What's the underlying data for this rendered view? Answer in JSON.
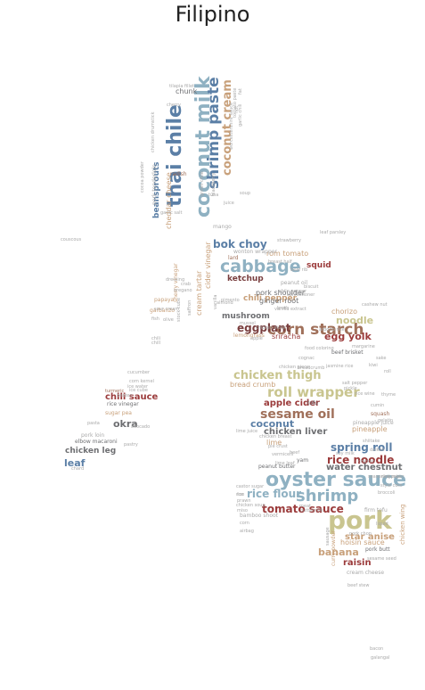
{
  "title": "Filipino",
  "palette": {
    "blue": "#5b7fa6",
    "teal": "#8fb1c2",
    "brown": "#a0705a",
    "red": "#9b3b3b",
    "olive": "#c9c58f",
    "tan": "#c8a07a",
    "gray": "#a9a9a9",
    "dark": "#6e6f72",
    "maroon": "#7a3f3f"
  },
  "words": [
    {
      "text": "pork",
      "color": "olive"
    },
    {
      "text": "oyster sauce",
      "color": "teal"
    },
    {
      "text": "coconut milk",
      "color": "teal"
    },
    {
      "text": "thai chile",
      "color": "blue"
    },
    {
      "text": "shrimp paste",
      "color": "blue"
    },
    {
      "text": "cabbage",
      "color": "teal"
    },
    {
      "text": "corn starch",
      "color": "brown"
    },
    {
      "text": "shrimp",
      "color": "teal"
    },
    {
      "text": "coconut cream",
      "color": "tan"
    },
    {
      "text": "roll wrapper",
      "color": "olive"
    },
    {
      "text": "sesame oil",
      "color": "brown"
    },
    {
      "text": "chicken thigh",
      "color": "olive"
    },
    {
      "text": "rice flour",
      "color": "teal"
    },
    {
      "text": "spring roll",
      "color": "blue"
    },
    {
      "text": "tomato sauce",
      "color": "red"
    },
    {
      "text": "banana",
      "color": "tan"
    },
    {
      "text": "bok choy",
      "color": "blue"
    },
    {
      "text": "rice noodle",
      "color": "red"
    },
    {
      "text": "egg yolk",
      "color": "red"
    },
    {
      "text": "noodle",
      "color": "olive"
    },
    {
      "text": "eggplant",
      "color": "maroon"
    },
    {
      "text": "raisin",
      "color": "red"
    },
    {
      "text": "coconut",
      "color": "blue"
    },
    {
      "text": "water chestnut",
      "color": "dark"
    },
    {
      "text": "star anise",
      "color": "tan"
    },
    {
      "text": "apple cider",
      "color": "red"
    },
    {
      "text": "chicken liver",
      "color": "dark"
    },
    {
      "text": "okra",
      "color": "dark"
    },
    {
      "text": "chili sauce",
      "color": "red"
    },
    {
      "text": "leaf",
      "color": "blue"
    },
    {
      "text": "beansprouts",
      "color": "blue"
    },
    {
      "text": "squid",
      "color": "red"
    },
    {
      "text": "ketchup",
      "color": "maroon"
    },
    {
      "text": "chicken leg",
      "color": "dark"
    },
    {
      "text": "hoisin sauce",
      "color": "tan"
    },
    {
      "text": "chorizo",
      "color": "tan"
    },
    {
      "text": "mushroom",
      "color": "dark"
    },
    {
      "text": "chili pepper",
      "color": "tan"
    },
    {
      "text": "rom tomato",
      "color": "tan"
    },
    {
      "text": "ginger root",
      "color": "dark"
    },
    {
      "text": "pork shoulder",
      "color": "dark"
    },
    {
      "text": "chunk",
      "color": "dark"
    },
    {
      "text": "cheddar cheese",
      "color": "tan"
    },
    {
      "text": "cream tartar",
      "color": "tan"
    },
    {
      "text": "cider vinegar",
      "color": "tan"
    },
    {
      "text": "sriracha",
      "color": "red"
    },
    {
      "text": "bread crumb",
      "color": "tan"
    },
    {
      "text": "pineapple",
      "color": "tan"
    },
    {
      "text": "lime",
      "color": "tan"
    },
    {
      "text": "chicken wing",
      "color": "tan"
    },
    {
      "text": "curry powder",
      "color": "tan"
    },
    {
      "text": "pork butt",
      "color": "dark"
    },
    {
      "text": "rice vinegar",
      "color": "dark"
    },
    {
      "text": "sugar pea",
      "color": "tan"
    },
    {
      "text": "elbow macaroni",
      "color": "dark"
    },
    {
      "text": "beef brisket",
      "color": "dark"
    },
    {
      "text": "tofu",
      "color": "dark"
    },
    {
      "text": "yam",
      "color": "dark"
    },
    {
      "text": "peanut butter",
      "color": "dark"
    },
    {
      "text": "mango",
      "color": "gray"
    },
    {
      "text": "garbanzo",
      "color": "tan"
    },
    {
      "text": "papaya",
      "color": "tan"
    },
    {
      "text": "lemongrass",
      "color": "tan"
    },
    {
      "text": "wonton wrapper",
      "color": "gray"
    },
    {
      "text": "lard",
      "color": "brown"
    },
    {
      "text": "radish",
      "color": "brown"
    },
    {
      "text": "pork loin",
      "color": "gray"
    },
    {
      "text": "peanut oil",
      "color": "gray"
    },
    {
      "text": "cream cheese",
      "color": "gray"
    },
    {
      "text": "sherry vinegar",
      "color": "tan"
    },
    {
      "text": "pineapple juice",
      "color": "gray"
    },
    {
      "text": "firm tofu",
      "color": "gray"
    },
    {
      "text": "bamboo shoot",
      "color": "gray"
    },
    {
      "text": "pork tenderloin",
      "color": "gray"
    },
    {
      "text": "broth",
      "color": "gray"
    },
    {
      "text": "turmeric",
      "color": "brown"
    },
    {
      "text": "shiitake",
      "color": "gray"
    },
    {
      "text": "squash",
      "color": "brown"
    },
    {
      "text": "cumin",
      "color": "gray"
    },
    {
      "text": "pickle",
      "color": "gray"
    },
    {
      "text": "salt pepper",
      "color": "gray"
    },
    {
      "text": "crab",
      "color": "gray"
    },
    {
      "text": "oregano",
      "color": "gray"
    },
    {
      "text": "chili",
      "color": "gray"
    },
    {
      "text": "cucumber",
      "color": "gray"
    },
    {
      "text": "corn",
      "color": "gray"
    },
    {
      "text": "ice",
      "color": "gray"
    },
    {
      "text": "bacon",
      "color": "gray"
    },
    {
      "text": "galangal",
      "color": "gray"
    },
    {
      "text": "leaf parsley",
      "color": "gray"
    },
    {
      "text": "strawberry",
      "color": "gray"
    },
    {
      "text": "tilapia fillet",
      "color": "gray"
    },
    {
      "text": "cashew nut",
      "color": "gray"
    },
    {
      "text": "beef stew",
      "color": "gray"
    },
    {
      "text": "sesame seed",
      "color": "gray"
    },
    {
      "text": "daikon",
      "color": "gray"
    },
    {
      "text": "broccoli",
      "color": "gray"
    },
    {
      "text": "couscous",
      "color": "gray"
    },
    {
      "text": "garlic chili",
      "color": "gray"
    },
    {
      "text": "cherry",
      "color": "gray"
    },
    {
      "text": "prawn",
      "color": "gray"
    },
    {
      "text": "mussel",
      "color": "gray"
    },
    {
      "text": "biscuit",
      "color": "gray"
    },
    {
      "text": "chicken stock",
      "color": "gray"
    },
    {
      "text": "vanilla",
      "color": "gray"
    },
    {
      "text": "beaten",
      "color": "gray"
    },
    {
      "text": "pasta",
      "color": "gray"
    },
    {
      "text": "avocado",
      "color": "gray"
    },
    {
      "text": "rice",
      "color": "gray"
    },
    {
      "text": "sake",
      "color": "gray"
    },
    {
      "text": "thyme",
      "color": "gray"
    },
    {
      "text": "gelatin",
      "color": "gray"
    },
    {
      "text": "lime juice",
      "color": "gray"
    },
    {
      "text": "castor sugar",
      "color": "gray"
    },
    {
      "text": "soy milk",
      "color": "gray"
    },
    {
      "text": "rice paper",
      "color": "gray"
    },
    {
      "text": "miso",
      "color": "gray"
    },
    {
      "text": "tuna",
      "color": "gray"
    },
    {
      "text": "juice",
      "color": "gray"
    },
    {
      "text": "soup",
      "color": "gray"
    },
    {
      "text": "blackberry",
      "color": "gray"
    },
    {
      "text": "sour cream",
      "color": "gray"
    },
    {
      "text": "stock cube",
      "color": "gray"
    },
    {
      "text": "saffron",
      "color": "gray"
    },
    {
      "text": "chile pepper",
      "color": "gray"
    },
    {
      "text": "chicken piece",
      "color": "gray"
    },
    {
      "text": "arborio rice",
      "color": "gray"
    },
    {
      "text": "jasmine rice",
      "color": "gray"
    },
    {
      "text": "margarine",
      "color": "gray"
    },
    {
      "text": "kiwi",
      "color": "gray"
    },
    {
      "text": "cognac",
      "color": "gray"
    },
    {
      "text": "food coloring",
      "color": "gray"
    },
    {
      "text": "chicken breast",
      "color": "gray"
    },
    {
      "text": "rice wine",
      "color": "gray"
    },
    {
      "text": "vermicelli",
      "color": "gray"
    },
    {
      "text": "pie crust",
      "color": "gray"
    },
    {
      "text": "airbag",
      "color": "gray"
    },
    {
      "text": "chicken drumstick",
      "color": "gray"
    },
    {
      "text": "cocoa powder",
      "color": "gray"
    },
    {
      "text": "garlic salt",
      "color": "gray"
    },
    {
      "text": "green chile",
      "color": "gray"
    },
    {
      "text": "pastry",
      "color": "gray"
    },
    {
      "text": "ice cube",
      "color": "gray"
    },
    {
      "text": "ice water",
      "color": "gray"
    },
    {
      "text": "corn kernel",
      "color": "gray"
    },
    {
      "text": "chicken soup",
      "color": "gray"
    },
    {
      "text": "style corn",
      "color": "gray"
    },
    {
      "text": "pork chop",
      "color": "gray"
    },
    {
      "text": "sausage",
      "color": "gray"
    },
    {
      "text": "chard",
      "color": "gray"
    },
    {
      "text": "fish",
      "color": "gray"
    },
    {
      "text": "olive",
      "color": "gray"
    },
    {
      "text": "roll",
      "color": "gray"
    },
    {
      "text": "chill",
      "color": "gray"
    },
    {
      "text": "tomato paste",
      "color": "gray"
    },
    {
      "text": "worcestershire sauce",
      "color": "gray"
    },
    {
      "text": "hot",
      "color": "gray"
    },
    {
      "text": "fat",
      "color": "gray"
    },
    {
      "text": "confectioner",
      "color": "gray"
    },
    {
      "text": "almond",
      "color": "gray"
    },
    {
      "text": "pimento",
      "color": "gray"
    },
    {
      "text": "dressing",
      "color": "gray"
    },
    {
      "text": "vanilla extract",
      "color": "gray"
    },
    {
      "text": "breadcrumb",
      "color": "gray"
    },
    {
      "text": "beef rib",
      "color": "gray"
    },
    {
      "text": "breast half",
      "color": "gray"
    },
    {
      "text": "apple",
      "color": "gray"
    },
    {
      "text": "seasoning mix",
      "color": "gray"
    },
    {
      "text": "lime leaf",
      "color": "gray"
    },
    {
      "text": "beef",
      "color": "gray"
    },
    {
      "text": "meat",
      "color": "gray"
    },
    {
      "text": "buttermilk",
      "color": "gray"
    },
    {
      "text": "chicken",
      "color": "gray"
    },
    {
      "text": "liquid",
      "color": "gray"
    }
  ]
}
